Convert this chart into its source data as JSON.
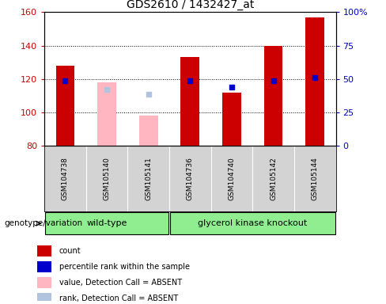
{
  "title": "GDS2610 / 1432427_at",
  "samples": [
    "GSM104738",
    "GSM105140",
    "GSM105141",
    "GSM104736",
    "GSM104740",
    "GSM105142",
    "GSM105144"
  ],
  "wt_count": 3,
  "ko_count": 4,
  "bar_bottom": 80,
  "ylim": [
    80,
    160
  ],
  "yticks_left": [
    80,
    100,
    120,
    140,
    160
  ],
  "yticks_right_vals": [
    0,
    25,
    50,
    75,
    100
  ],
  "yticks_right_pos": [
    80,
    100,
    120,
    140,
    160
  ],
  "count_values": [
    128,
    null,
    null,
    133,
    112,
    140,
    157
  ],
  "count_color": "#cc0000",
  "absent_value_bars": [
    null,
    118,
    98,
    null,
    null,
    null,
    null
  ],
  "absent_value_color": "#ffb6c1",
  "percentile_ranks": [
    119,
    null,
    null,
    119,
    115,
    119,
    121
  ],
  "percentile_rank_color": "#0000cc",
  "absent_rank_values": [
    null,
    114,
    111,
    null,
    null,
    null,
    null
  ],
  "absent_rank_color": "#b0c4de",
  "bar_width": 0.45,
  "left_axis_color": "#cc0000",
  "right_axis_color": "#0000cc",
  "grid_lines": [
    100,
    120,
    140
  ],
  "legend_items": [
    {
      "label": "count",
      "color": "#cc0000"
    },
    {
      "label": "percentile rank within the sample",
      "color": "#0000cc"
    },
    {
      "label": "value, Detection Call = ABSENT",
      "color": "#ffb6c1"
    },
    {
      "label": "rank, Detection Call = ABSENT",
      "color": "#b0c4de"
    }
  ],
  "genotype_label": "genotype/variation",
  "group_label_wt": "wild-type",
  "group_label_ko": "glycerol kinase knockout",
  "group_color": "#90EE90",
  "sample_bg_color": "#d3d3d3",
  "sample_border_color": "#aaaaaa"
}
